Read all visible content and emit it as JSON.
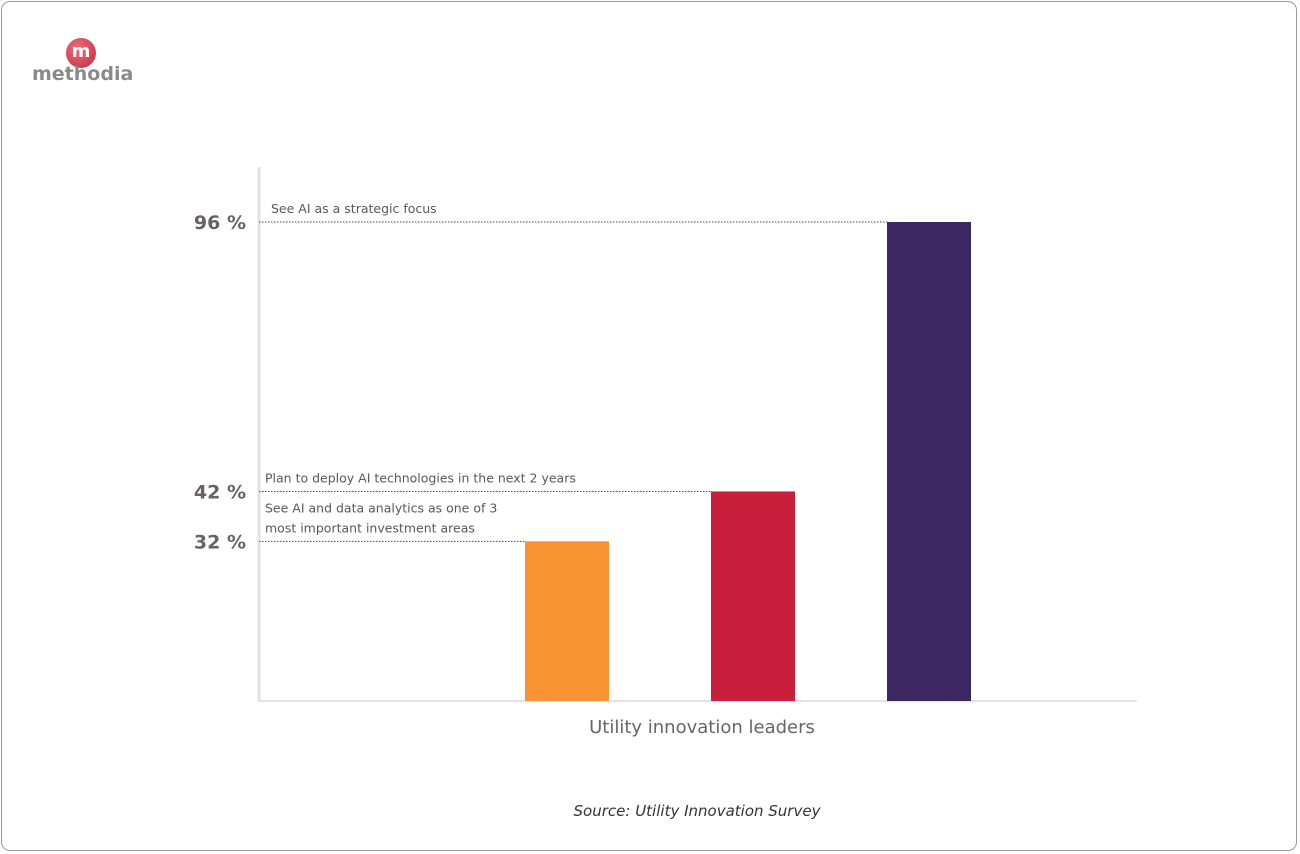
{
  "logo": {
    "mark": "m",
    "text": "methodia",
    "color": "#c8283e"
  },
  "chart_data": {
    "type": "bar",
    "xlabel": "Utility innovation leaders",
    "ylabel": "",
    "ylim": [
      0,
      100
    ],
    "grid": false,
    "categories": [
      "See AI and data analytics as one of 3 most important investment areas",
      "Plan to deploy AI technologies in the next 2 years",
      "See  AI as a strategic focus"
    ],
    "annotation_lines": [
      [
        "See AI and data analytics as one of 3",
        "most important investment areas"
      ],
      [
        "Plan to deploy AI technologies in the next 2 years"
      ],
      [
        "See  AI as a strategic focus"
      ]
    ],
    "values": [
      32,
      42,
      96
    ],
    "tick_labels": [
      "32 %",
      "42 %",
      "96 %"
    ],
    "colors": [
      "#f79332",
      "#c81f3c",
      "#3d2762"
    ]
  },
  "source": "Source: Utility Innovation Survey"
}
